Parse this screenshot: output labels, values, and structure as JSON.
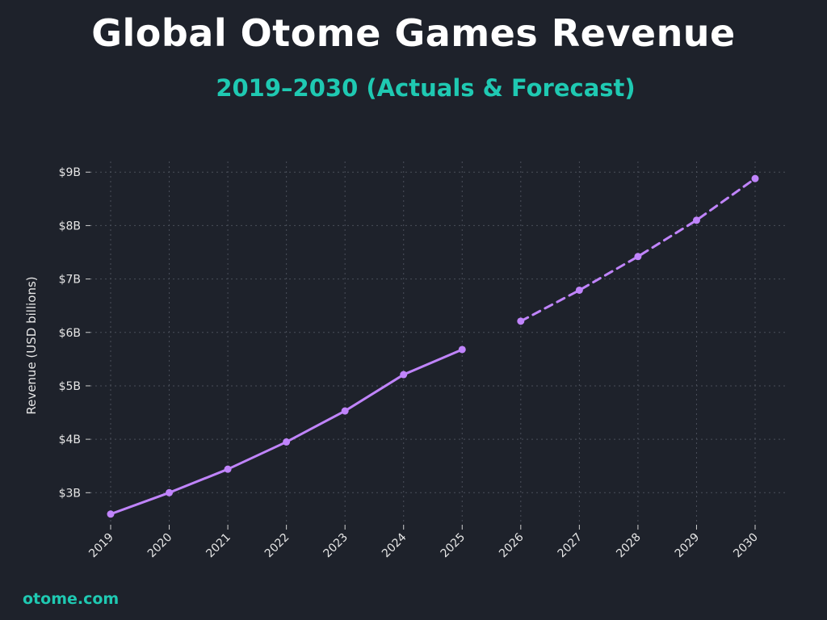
{
  "header": {
    "title": "Global Otome Games Revenue",
    "subtitle": "2019–2030 (Actuals & Forecast)"
  },
  "footer": {
    "brand": "otome.com"
  },
  "chart_data": {
    "type": "line",
    "ylabel": "Revenue (USD billions)",
    "xlabel": "",
    "categories": [
      "2019",
      "2020",
      "2021",
      "2022",
      "2023",
      "2024",
      "2025",
      "2026",
      "2027",
      "2028",
      "2029",
      "2030"
    ],
    "ylim": [
      2.4,
      9.2
    ],
    "y_ticks": [
      3,
      4,
      5,
      6,
      7,
      8,
      9
    ],
    "y_tick_labels": [
      "$3B",
      "$4B",
      "$5B",
      "$6B",
      "$7B",
      "$8B",
      "$9B"
    ],
    "grid": true,
    "series": [
      {
        "style": "solid",
        "color": "#c084fc",
        "x": [
          "2019",
          "2020",
          "2021",
          "2022",
          "2023",
          "2024",
          "2025"
        ],
        "values": [
          2.6,
          3.0,
          3.44,
          3.95,
          4.53,
          5.21,
          5.68
        ]
      },
      {
        "style": "dashed",
        "color": "#c084fc",
        "x": [
          "2026",
          "2027",
          "2028",
          "2029",
          "2030"
        ],
        "values": [
          6.21,
          6.79,
          7.42,
          8.1,
          8.88
        ]
      }
    ]
  }
}
